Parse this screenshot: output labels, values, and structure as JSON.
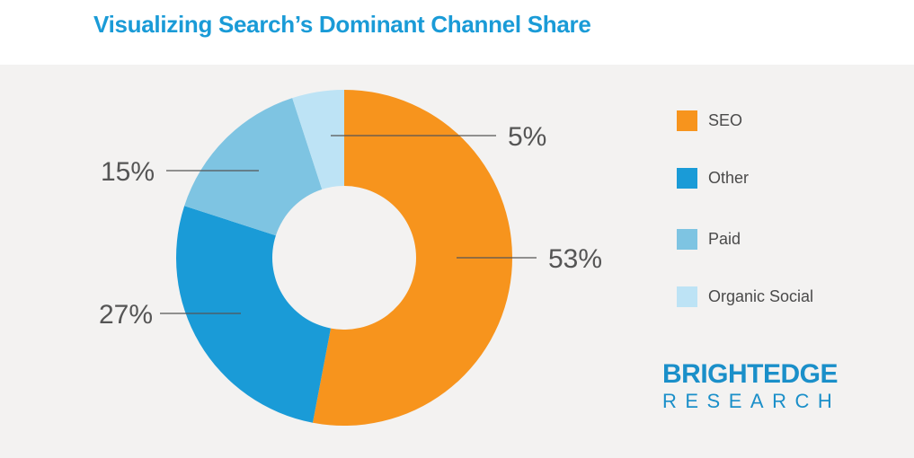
{
  "title": "Visualizing Search’s Dominant Channel Share",
  "chart_data": {
    "type": "pie",
    "donut": true,
    "title": "Visualizing Search’s Dominant Channel Share",
    "categories": [
      "SEO",
      "Other",
      "Paid",
      "Organic Social"
    ],
    "values": [
      53,
      27,
      15,
      5
    ],
    "labels": [
      "53%",
      "27%",
      "15%",
      "5%"
    ],
    "colors": [
      "#f7941d",
      "#1a9bd7",
      "#7ec4e2",
      "#bde3f5"
    ],
    "legend_position": "right"
  },
  "legend": {
    "items": [
      {
        "label": "SEO",
        "color": "#f7941d"
      },
      {
        "label": "Other",
        "color": "#1a9bd7"
      },
      {
        "label": "Paid",
        "color": "#7ec4e2"
      },
      {
        "label": "Organic Social",
        "color": "#bde3f5"
      }
    ]
  },
  "logo": {
    "top": "BRIGHTEDGE",
    "bottom": "RESEARCH"
  },
  "colors": {
    "title": "#1a9bd7",
    "background": "#f3f2f1",
    "logo": "#1a8fc9"
  }
}
